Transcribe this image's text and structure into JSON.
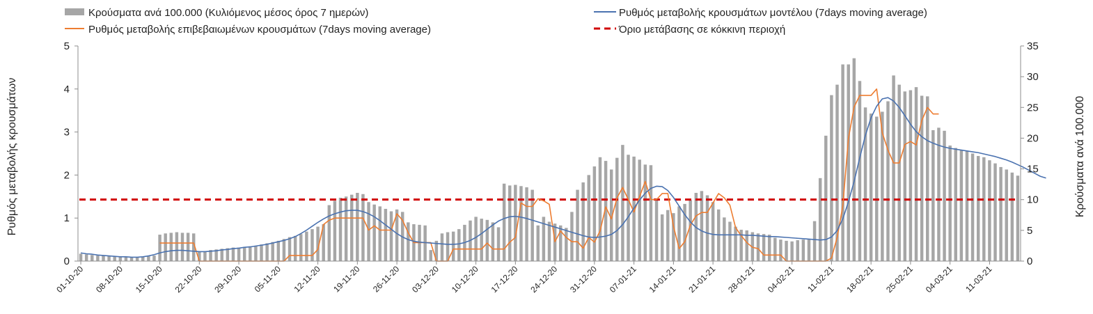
{
  "chart_data": {
    "type": "bar+line",
    "title": "",
    "xlabel": "",
    "ylabel_left": "Ρυθμός μεταβολής κρουσμάτων",
    "ylabel_right": "Κρούσματα ανά 100.000",
    "ylim_left": [
      0,
      5
    ],
    "ylim_right": [
      0,
      35
    ],
    "yticks_left": [
      "0",
      "1",
      "2",
      "3",
      "4",
      "5"
    ],
    "yticks_right": [
      "0",
      "5",
      "10",
      "15",
      "20",
      "25",
      "30",
      "35"
    ],
    "x_tick_labels": [
      "01-10-20",
      "08-10-20",
      "15-10-20",
      "22-10-20",
      "29-10-20",
      "05-11-20",
      "12-11-20",
      "19-11-20",
      "26-11-20",
      "03-12-20",
      "10-12-20",
      "17-12-20",
      "24-12-20",
      "31-12-20",
      "07-01-21",
      "14-01-21",
      "21-01-21",
      "28-01-21",
      "04-02-21",
      "11-02-21",
      "18-02-21",
      "25-02-21",
      "04-03-21",
      "11-03-21"
    ],
    "legend": {
      "bars": "Κρούσματα ανά 100.000 (Κυλιόμενος μέσος όρος 7 ημερών)",
      "model_line": "Ρυθμός μεταβολής κρουσμάτων μοντέλου (7days moving average)",
      "confirmed_line": "Ρυθμός μεταβολής επιβεβαιωμένων κρουσμάτων (7days moving average)",
      "threshold": "Όριο μετάβασης σε κόκκινη περιοχή"
    },
    "colors": {
      "bars": "#a6a6a6",
      "model_line": "#4a72b0",
      "confirmed_line": "#ed7d31",
      "threshold": "#d00000",
      "axis": "#8c8c8c"
    },
    "threshold_value": 1.43,
    "series": [
      {
        "name": "Κρούσματα ανά 100.000 (Κυλιόμενος μέσος όρος 7 ημερών)",
        "axis": "right",
        "type": "bar",
        "values": [
          1.2,
          1.1,
          1.0,
          0.9,
          0.9,
          0.8,
          0.8,
          0.7,
          0.7,
          0.6,
          0.6,
          0.7,
          0.8,
          0.9,
          4.3,
          4.5,
          4.6,
          4.7,
          4.6,
          4.6,
          4.5,
          1.5,
          1.6,
          1.8,
          1.9,
          2.0,
          2.1,
          2.2,
          2.2,
          2.3,
          2.4,
          2.5,
          2.7,
          2.9,
          3.1,
          3.3,
          3.6,
          3.9,
          4.1,
          4.4,
          4.8,
          5.2,
          5.6,
          6.0,
          9.1,
          9.8,
          10.3,
          10.5,
          10.8,
          11.1,
          10.9,
          9.6,
          9.2,
          8.9,
          8.5,
          8.1,
          8.4,
          8.0,
          6.3,
          6.0,
          5.9,
          5.8,
          1.8,
          3.3,
          4.5,
          4.7,
          4.8,
          5.2,
          5.9,
          6.6,
          7.2,
          6.9,
          6.7,
          6.3,
          5.5,
          12.6,
          12.3,
          12.4,
          12.2,
          12.0,
          11.6,
          5.8,
          7.2,
          6.4,
          6.1,
          5.8,
          5.4,
          8.0,
          11.6,
          12.8,
          14.0,
          15.4,
          16.9,
          16.3,
          14.9,
          16.8,
          18.9,
          17.3,
          17.0,
          16.5,
          15.7,
          15.6,
          10.2,
          7.6,
          8.3,
          7.8,
          8.9,
          9.3,
          9.9,
          11.1,
          11.4,
          10.7,
          9.6,
          8.4,
          7.1,
          6.4,
          5.6,
          5.1,
          5.0,
          4.7,
          4.5,
          4.4,
          4.3,
          3.8,
          3.5,
          3.3,
          3.2,
          3.4,
          3.5,
          3.6,
          6.5,
          13.5,
          20.4,
          27.0,
          28.7,
          32.0,
          32.0,
          33.0,
          29.3,
          25.0,
          24.0,
          23.5,
          24.3,
          26.0,
          30.2,
          28.7,
          27.6,
          27.8,
          28.3,
          26.9,
          26.8,
          21.3,
          21.7,
          21.2,
          18.8,
          18.4,
          18.1,
          17.9,
          17.5,
          17.1,
          16.9,
          16.4,
          15.9,
          15.3,
          14.9,
          14.4,
          13.9
        ]
      },
      {
        "name": "Ρυθμός μεταβολής κρουσμάτων μοντέλου (7days moving average)",
        "axis": "left",
        "type": "line",
        "values": [
          0.19,
          0.17,
          0.16,
          0.14,
          0.13,
          0.12,
          0.11,
          0.1,
          0.1,
          0.09,
          0.09,
          0.1,
          0.12,
          0.15,
          0.19,
          0.22,
          0.24,
          0.25,
          0.25,
          0.24,
          0.23,
          0.22,
          0.22,
          0.23,
          0.24,
          0.26,
          0.27,
          0.29,
          0.3,
          0.32,
          0.33,
          0.35,
          0.37,
          0.39,
          0.42,
          0.45,
          0.48,
          0.52,
          0.57,
          0.64,
          0.72,
          0.81,
          0.9,
          0.98,
          1.05,
          1.1,
          1.14,
          1.17,
          1.18,
          1.18,
          1.15,
          1.1,
          1.03,
          0.94,
          0.84,
          0.74,
          0.64,
          0.56,
          0.5,
          0.46,
          0.44,
          0.43,
          0.42,
          0.41,
          0.4,
          0.39,
          0.39,
          0.4,
          0.43,
          0.48,
          0.55,
          0.64,
          0.74,
          0.84,
          0.93,
          0.99,
          1.03,
          1.04,
          1.02,
          0.99,
          0.95,
          0.91,
          0.87,
          0.83,
          0.79,
          0.75,
          0.71,
          0.67,
          0.63,
          0.59,
          0.56,
          0.55,
          0.56,
          0.58,
          0.62,
          0.71,
          0.85,
          1.03,
          1.23,
          1.42,
          1.58,
          1.69,
          1.74,
          1.73,
          1.64,
          1.48,
          1.28,
          1.08,
          0.91,
          0.78,
          0.7,
          0.65,
          0.62,
          0.61,
          0.61,
          0.61,
          0.61,
          0.61,
          0.6,
          0.6,
          0.59,
          0.58,
          0.57,
          0.57,
          0.56,
          0.55,
          0.54,
          0.53,
          0.52,
          0.51,
          0.5,
          0.49,
          0.5,
          0.56,
          0.71,
          0.98,
          1.38,
          1.85,
          2.4,
          2.92,
          3.33,
          3.6,
          3.77,
          3.8,
          3.72,
          3.57,
          3.38,
          3.18,
          3.01,
          2.89,
          2.8,
          2.74,
          2.69,
          2.65,
          2.62,
          2.6,
          2.58,
          2.56,
          2.54,
          2.52,
          2.49,
          2.46,
          2.43,
          2.39,
          2.35,
          2.3,
          2.24,
          2.18,
          2.11,
          2.04,
          1.97,
          1.93
        ]
      },
      {
        "name": "Ρυθμός μεταβολής επιβεβαιωμένων κρουσμάτων (7days moving average)",
        "axis": "left",
        "type": "line",
        "values": [
          null,
          null,
          null,
          null,
          null,
          null,
          null,
          null,
          null,
          null,
          null,
          null,
          null,
          null,
          0.42,
          0.42,
          0.42,
          0.42,
          0.42,
          0.42,
          0.42,
          0,
          0,
          0,
          0,
          0,
          0,
          0,
          0,
          0,
          0,
          0,
          0,
          0,
          0,
          0,
          0,
          0.13,
          0.13,
          0.13,
          0.13,
          0.13,
          0.27,
          0.85,
          0.95,
          1,
          1,
          1,
          1,
          1,
          1,
          0.72,
          0.82,
          0.72,
          0.72,
          0.72,
          1.1,
          0.95,
          0.66,
          0.43,
          0.43,
          0.43,
          0.43,
          0,
          0,
          0,
          0.28,
          0.28,
          0.28,
          0.28,
          0.28,
          0.28,
          0.42,
          0.28,
          0.28,
          0.28,
          0.44,
          0.55,
          1.35,
          1.27,
          1.27,
          1.45,
          1.4,
          1.32,
          0.45,
          0.7,
          0.55,
          0.45,
          0.45,
          0.3,
          0.55,
          0.44,
          0.7,
          1.26,
          0.98,
          1.47,
          1.71,
          1.43,
          1.14,
          1.5,
          1.85,
          1.43,
          1.43,
          1.57,
          1.57,
          0.81,
          0.29,
          0.45,
          0.84,
          1.05,
          1.13,
          1.13,
          1.35,
          1.57,
          1.47,
          1.3,
          0.78,
          0.59,
          0.43,
          0.32,
          0.29,
          0.14,
          0.14,
          0.14,
          0.14,
          0,
          0,
          0,
          0,
          0,
          0,
          0,
          0,
          0.07,
          0.55,
          1.28,
          2.85,
          3.58,
          3.85,
          3.85,
          3.85,
          4.0,
          2.98,
          2.58,
          2.28,
          2.28,
          2.71,
          2.78,
          2.7,
          3.27,
          3.57,
          3.42,
          3.42
        ]
      }
    ]
  }
}
